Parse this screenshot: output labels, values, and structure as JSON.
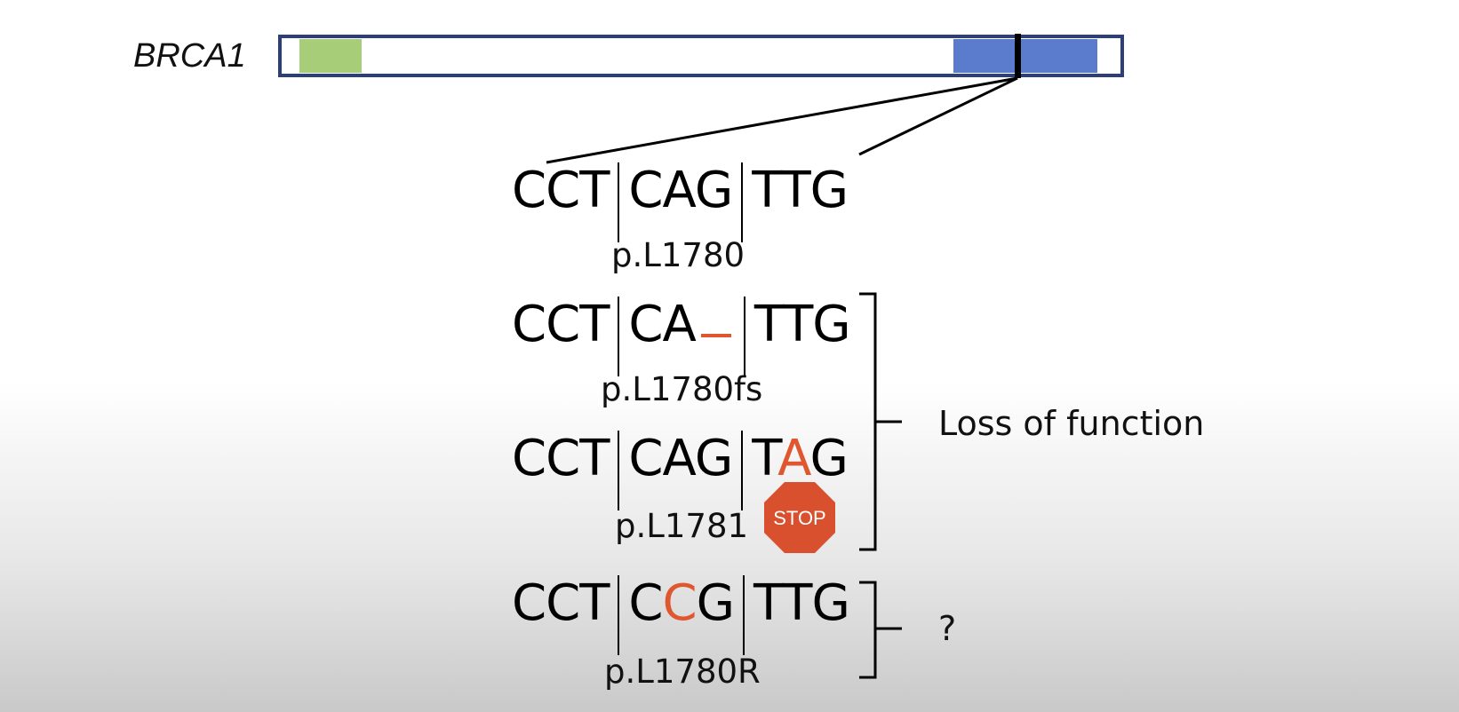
{
  "gene": {
    "name": "BRCA1",
    "colors": {
      "outline": "#2d3f7a",
      "domain_n": "#a8cd78",
      "domain_c": "#5b7ccc",
      "marker": "#000000"
    }
  },
  "sequences": [
    {
      "codons": [
        "CCT",
        "CAG",
        "TTG"
      ],
      "highlight": "",
      "protein": "p.L1780"
    },
    {
      "codons": [
        "CCT",
        "CA",
        "TTG"
      ],
      "deletion": true,
      "protein": "p.L1780fs"
    },
    {
      "codons": [
        "CCT",
        "CAG",
        "TAG"
      ],
      "highlight_codon": 2,
      "highlight_index": 1,
      "protein": "p.L1781",
      "stop_label": "STOP"
    },
    {
      "codons": [
        "CCT",
        "CCG",
        "TTG"
      ],
      "highlight_codon": 1,
      "highlight_index": 1,
      "protein": "p.L1780R"
    }
  ],
  "effects": {
    "lof_label": "Loss of function",
    "unknown_label": "?"
  },
  "colors": {
    "mutation": "#e0562f",
    "stop_sign": "#d9502e"
  }
}
